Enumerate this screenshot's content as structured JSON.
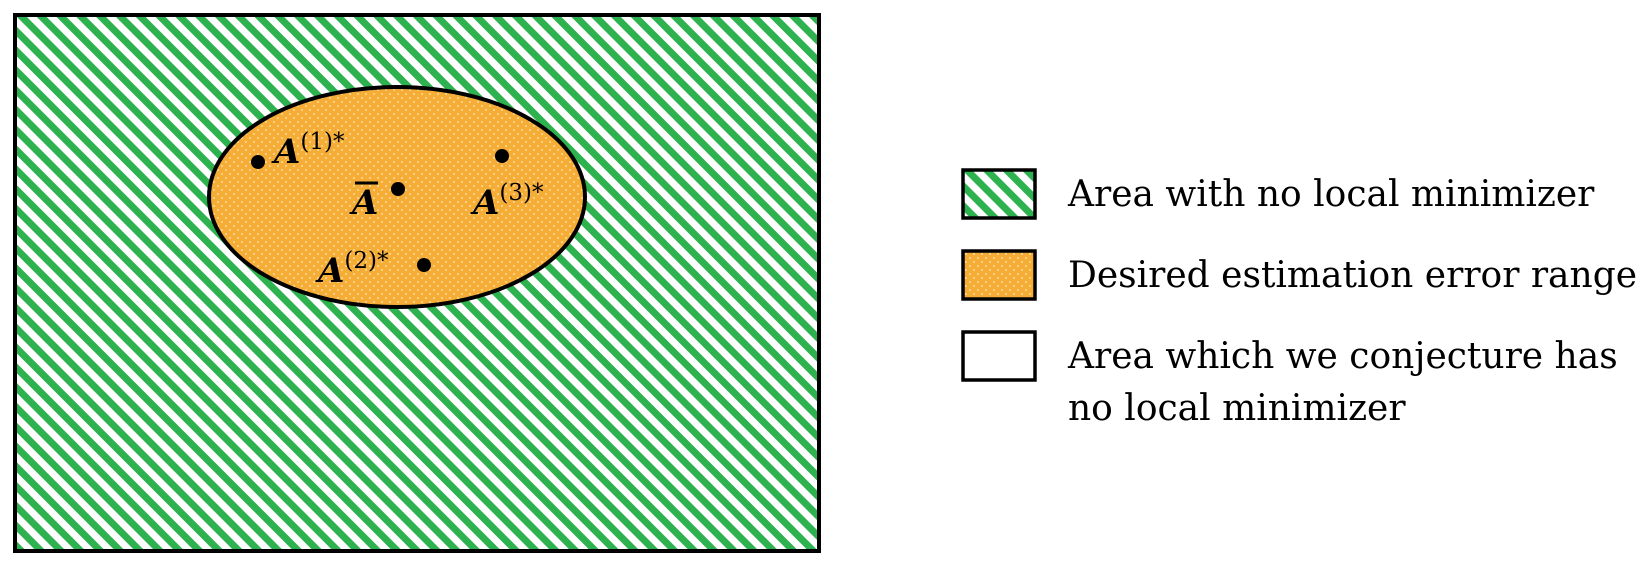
{
  "colors": {
    "green_hatch": "#2db24f",
    "orange_fill": "#f5ad35",
    "outline": "#000000",
    "background": "#ffffff"
  },
  "points": [
    {
      "id": "A1",
      "label": "A",
      "sup": "(1)*"
    },
    {
      "id": "Abar",
      "label": "A",
      "sup": ""
    },
    {
      "id": "A3",
      "label": "A",
      "sup": "(3)*"
    },
    {
      "id": "A2",
      "label": "A",
      "sup": "(2)*"
    }
  ],
  "legend": {
    "items": [
      {
        "pattern": "green-hatch",
        "lines": [
          "Area with no local minimizer"
        ]
      },
      {
        "pattern": "orange-dots",
        "lines": [
          "Desired estimation error range"
        ]
      },
      {
        "pattern": "white",
        "lines": [
          "Area which we conjecture has",
          "no local minimizer"
        ]
      }
    ]
  }
}
